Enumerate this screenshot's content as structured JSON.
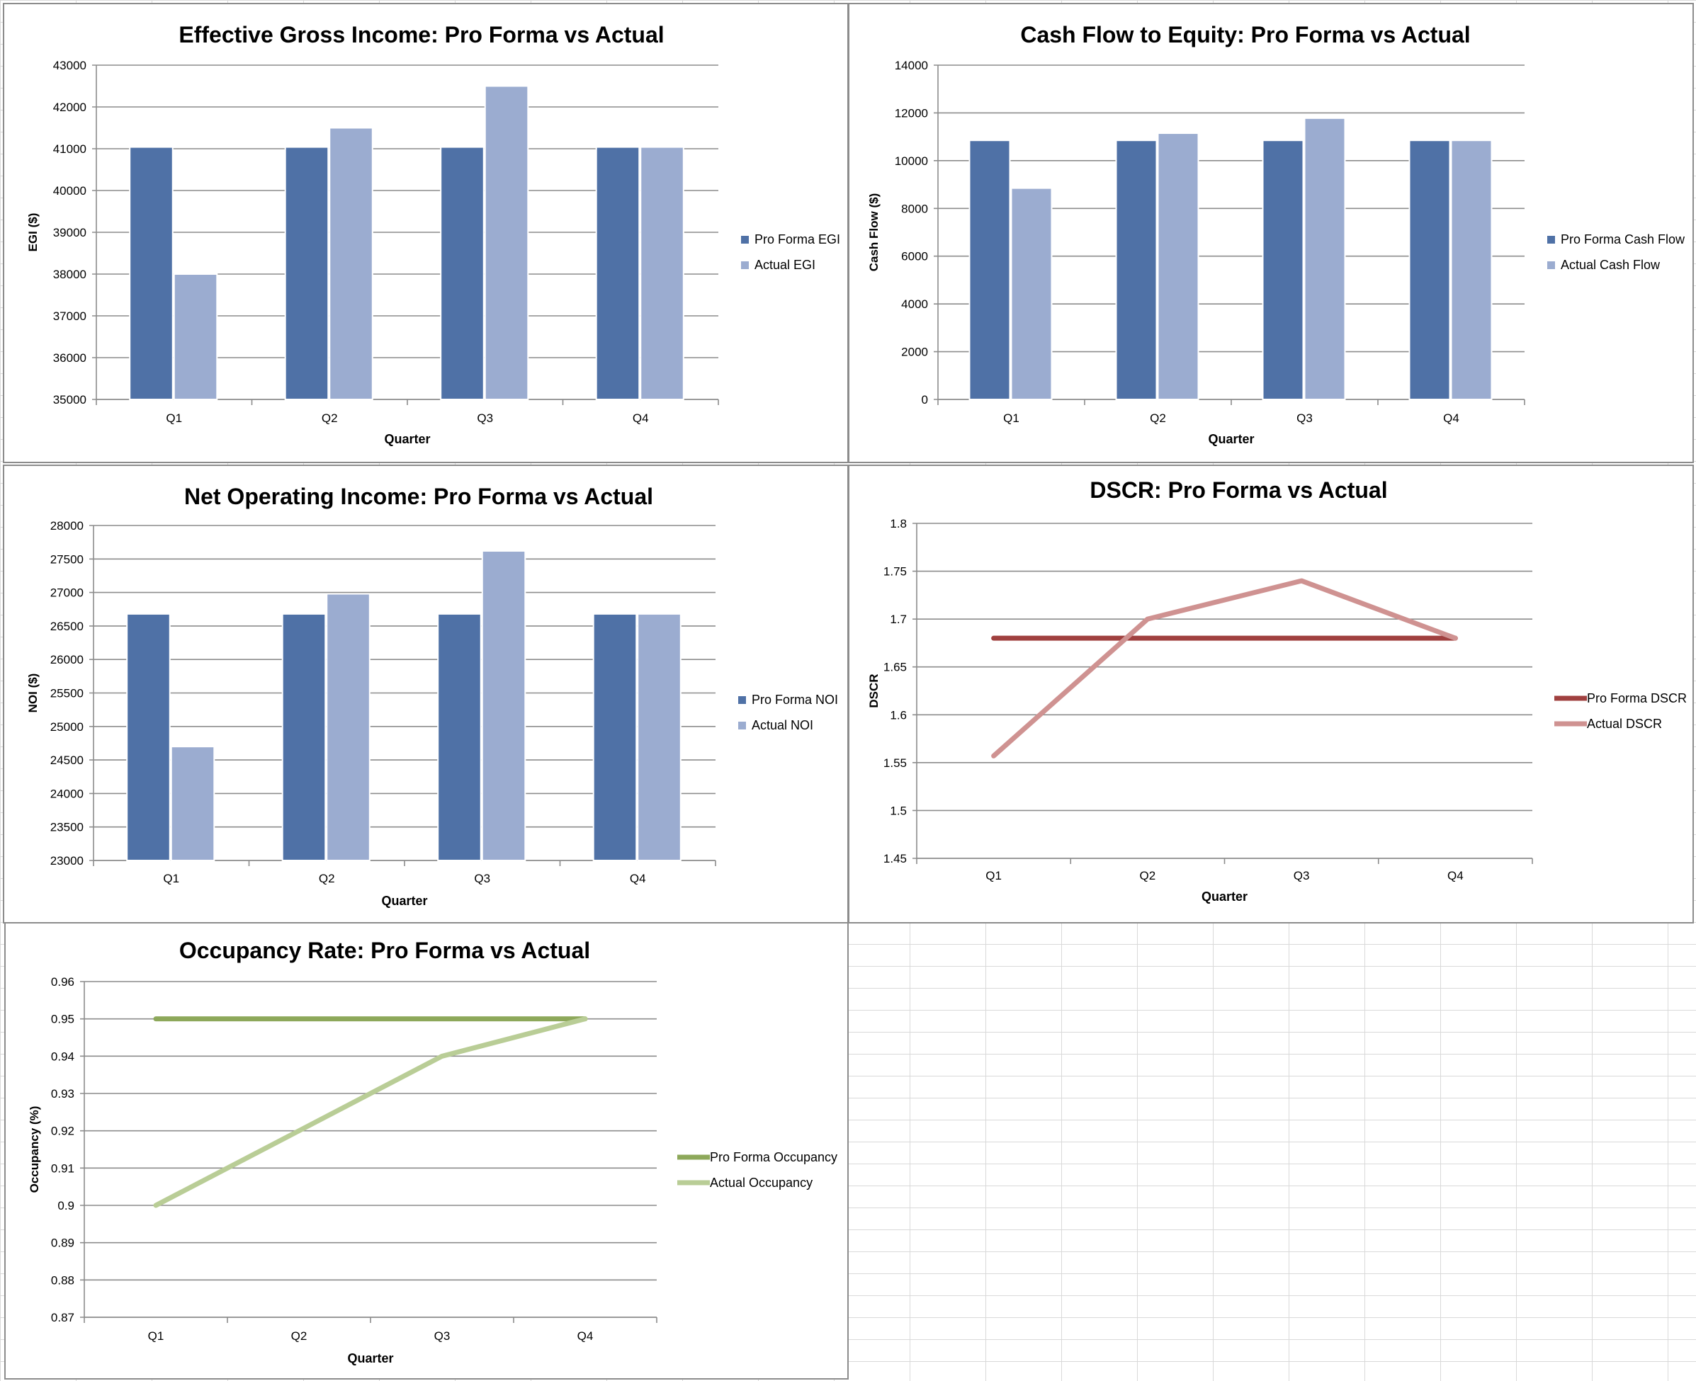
{
  "chart_data": [
    {
      "id": "egi",
      "type": "bar",
      "title": "Effective Gross Income: Pro Forma vs Actual",
      "xlabel": "Quarter",
      "ylabel": "EGI ($)",
      "categories": [
        "Q1",
        "Q2",
        "Q3",
        "Q4"
      ],
      "ylim": [
        35000,
        43000
      ],
      "ystep": 1000,
      "grid": true,
      "legend": "right",
      "series": [
        {
          "name": "Pro Forma EGI",
          "color": "#4f71a6",
          "values": [
            41040,
            41040,
            41040,
            41040
          ]
        },
        {
          "name": "Actual EGI",
          "color": "#9bacd0",
          "values": [
            38000,
            41500,
            42500,
            41040
          ]
        }
      ]
    },
    {
      "id": "cf",
      "type": "bar",
      "title": "Cash Flow to Equity: Pro Forma vs Actual",
      "xlabel": "Quarter",
      "ylabel": "Cash Flow ($)",
      "categories": [
        "Q1",
        "Q2",
        "Q3",
        "Q4"
      ],
      "ylim": [
        0,
        14000
      ],
      "ystep": 2000,
      "grid": true,
      "legend": "right",
      "series": [
        {
          "name": "Pro Forma Cash Flow",
          "color": "#4f71a6",
          "values": [
            10850,
            10850,
            10850,
            10850
          ]
        },
        {
          "name": "Actual Cash Flow",
          "color": "#9bacd0",
          "values": [
            8850,
            11150,
            11780,
            10850
          ]
        }
      ]
    },
    {
      "id": "noi",
      "type": "bar",
      "title": "Net Operating Income: Pro Forma vs Actual",
      "xlabel": "Quarter",
      "ylabel": "NOI ($)",
      "categories": [
        "Q1",
        "Q2",
        "Q3",
        "Q4"
      ],
      "ylim": [
        23000,
        28000
      ],
      "ystep": 500,
      "grid": true,
      "legend": "right",
      "series": [
        {
          "name": "Pro Forma NOI",
          "color": "#4f71a6",
          "values": [
            26680,
            26680,
            26680,
            26680
          ]
        },
        {
          "name": "Actual NOI",
          "color": "#9bacd0",
          "values": [
            24700,
            26980,
            27620,
            26680
          ]
        }
      ]
    },
    {
      "id": "dscr",
      "type": "line",
      "title": "DSCR: Pro Forma vs Actual",
      "xlabel": "Quarter",
      "ylabel": "DSCR",
      "categories": [
        "Q1",
        "Q2",
        "Q3",
        "Q4"
      ],
      "ylim": [
        1.45,
        1.8
      ],
      "ystep": 0.05,
      "grid": true,
      "legend": "right",
      "series": [
        {
          "name": "Pro Forma DSCR",
          "color": "#a0403f",
          "values": [
            1.68,
            1.68,
            1.68,
            1.68
          ]
        },
        {
          "name": "Actual DSCR",
          "color": "#cf9291",
          "values": [
            1.557,
            1.7,
            1.74,
            1.68
          ]
        }
      ]
    },
    {
      "id": "occ",
      "type": "line",
      "title": "Occupancy Rate: Pro Forma vs Actual",
      "xlabel": "Quarter",
      "ylabel": "Occupancy (%)",
      "categories": [
        "Q1",
        "Q2",
        "Q3",
        "Q4"
      ],
      "ylim": [
        0.87,
        0.96
      ],
      "ystep": 0.01,
      "grid": true,
      "legend": "right",
      "series": [
        {
          "name": "Pro Forma Occupancy",
          "color": "#8da85a",
          "values": [
            0.95,
            0.95,
            0.95,
            0.95
          ]
        },
        {
          "name": "Actual Occupancy",
          "color": "#b9cd96",
          "values": [
            0.9,
            0.92,
            0.94,
            0.95
          ]
        }
      ]
    }
  ]
}
